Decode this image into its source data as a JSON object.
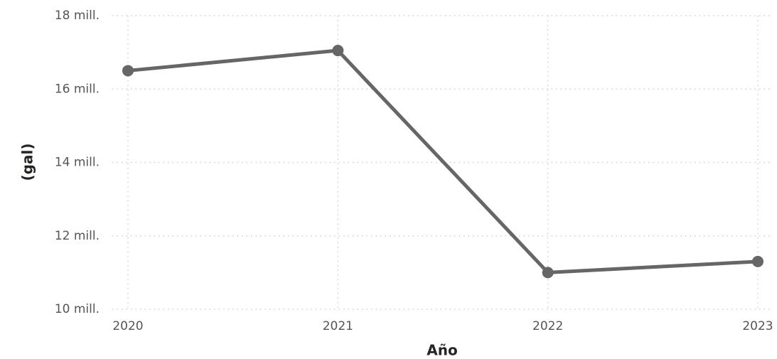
{
  "chart_data": {
    "type": "line",
    "x_label": "Año",
    "y_label": "(gal)",
    "categories": [
      "2020",
      "2021",
      "2022",
      "2023"
    ],
    "series": [
      {
        "name": "(gal)",
        "color": "#666666",
        "values": [
          16500000,
          17050000,
          11000000,
          11300000
        ]
      }
    ],
    "ylim": [
      10000000,
      18000000
    ],
    "yticks": [
      {
        "value": 10000000,
        "label": "10 mill."
      },
      {
        "value": 12000000,
        "label": "12 mill."
      },
      {
        "value": 14000000,
        "label": "14 mill."
      },
      {
        "value": 16000000,
        "label": "16 mill."
      },
      {
        "value": 18000000,
        "label": "18 mill."
      }
    ],
    "grid": true
  }
}
